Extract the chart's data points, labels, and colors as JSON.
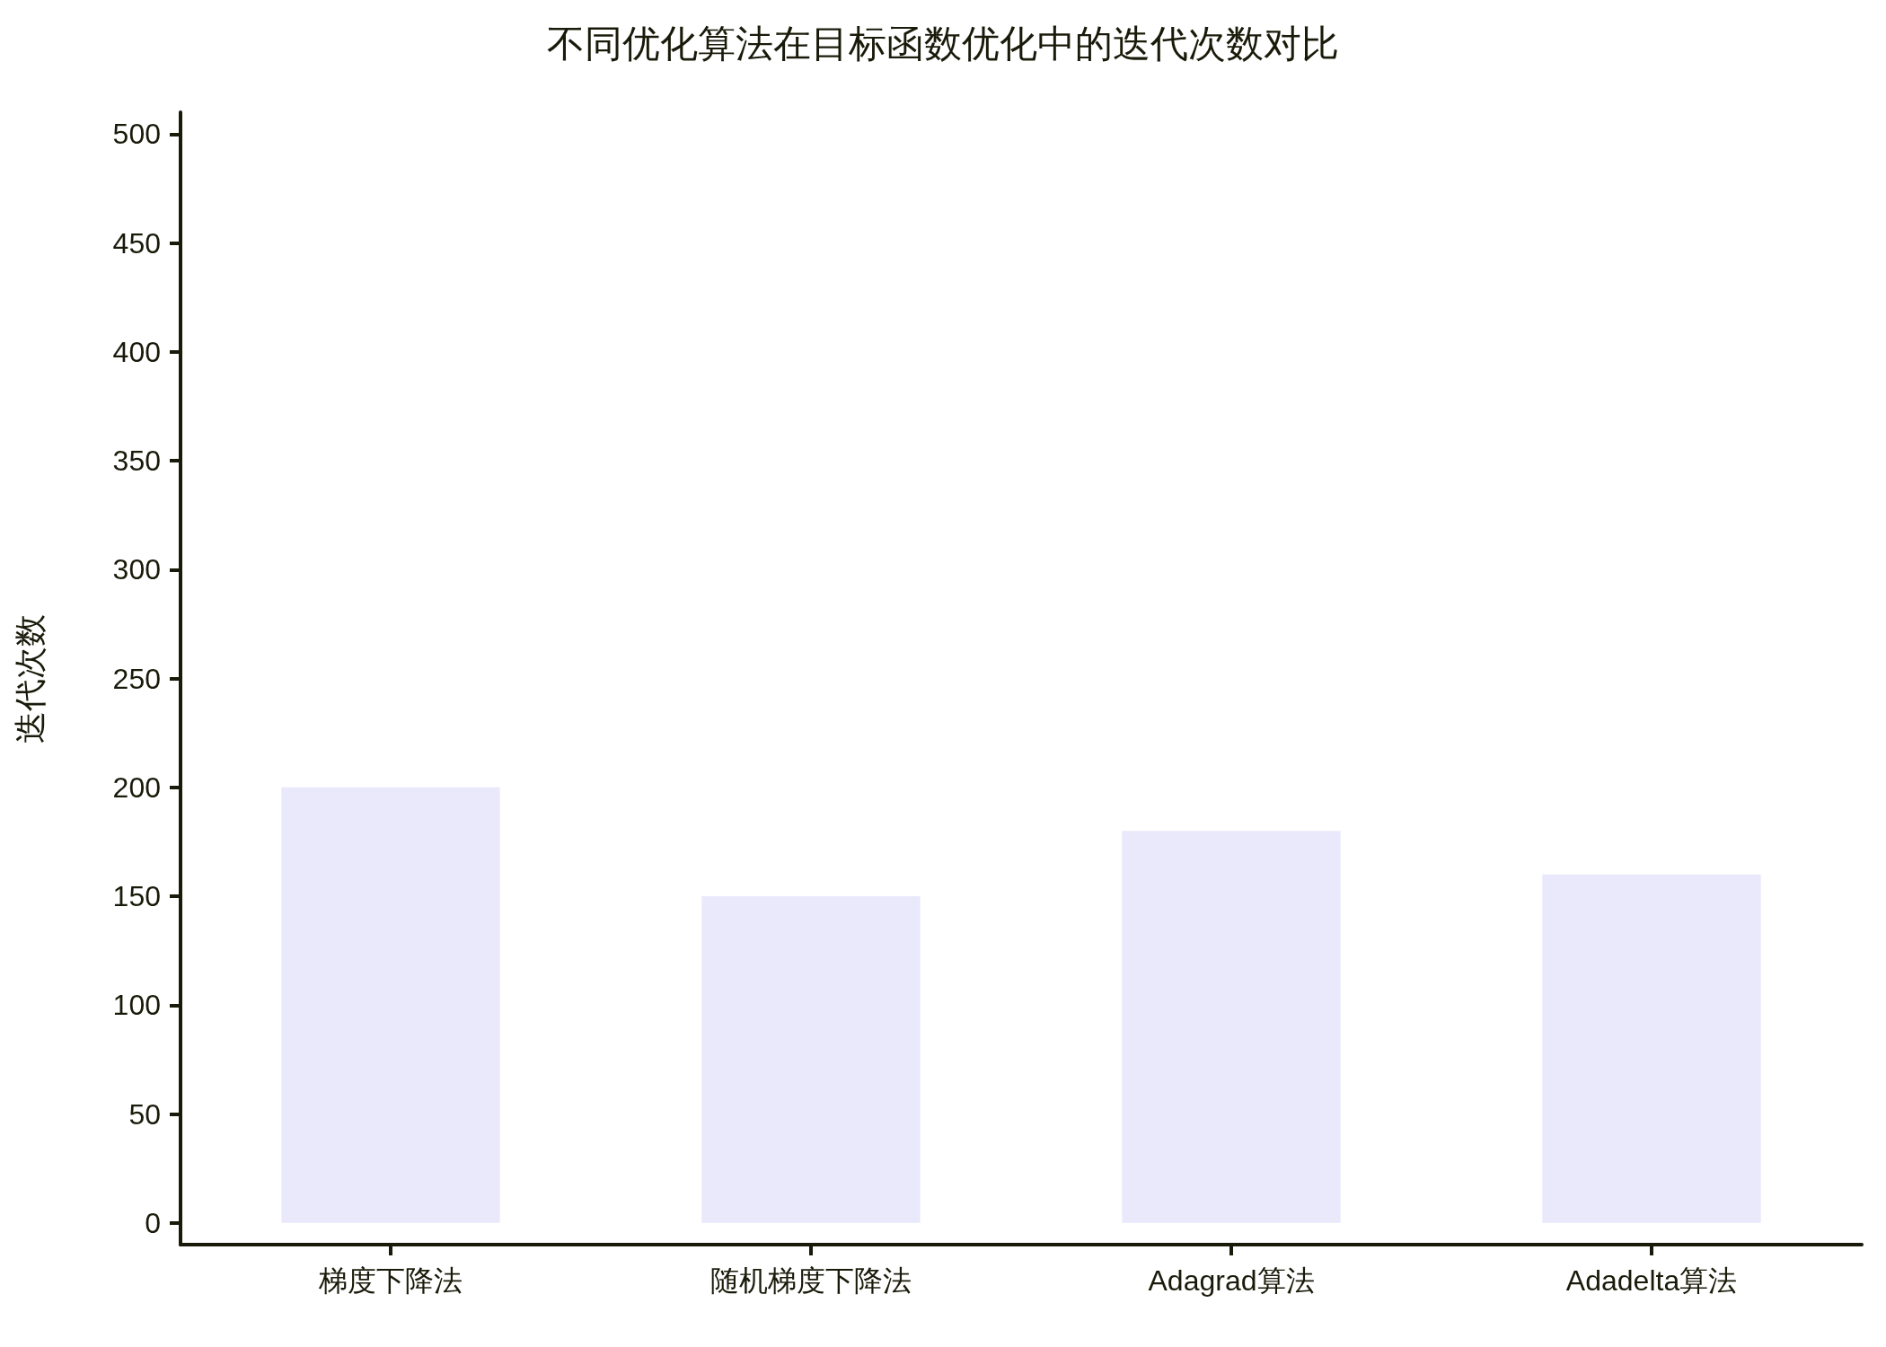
{
  "chart_data": {
    "type": "bar",
    "title": "不同优化算法在目标函数优化中的迭代次数对比",
    "ylabel": "迭代次数",
    "categories": [
      "梯度下降法",
      "随机梯度下降法",
      "Adagrad算法",
      "Adadelta算法"
    ],
    "values": [
      200,
      150,
      180,
      160
    ],
    "color": "#e9e9fb",
    "ylim": [
      -10,
      510
    ],
    "yticks": [
      0,
      50,
      100,
      150,
      200,
      250,
      300,
      350,
      400,
      450,
      500
    ],
    "grid": false
  }
}
